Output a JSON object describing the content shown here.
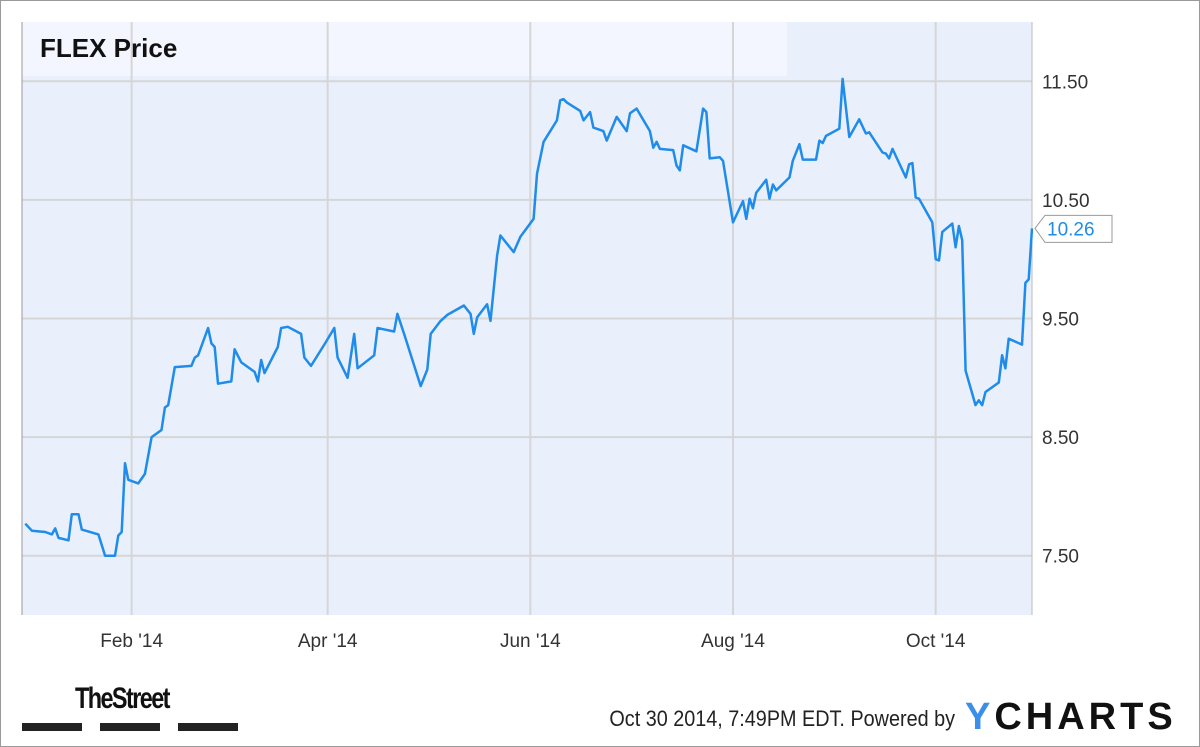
{
  "chart_data": {
    "type": "line",
    "title": "FLEX Price",
    "xlabel": "",
    "ylabel": "",
    "xlim": [
      "2013-12-30",
      "2014-10-30"
    ],
    "ylim": [
      7.0,
      12.0
    ],
    "y_ticks": [
      "7.50",
      "8.50",
      "9.50",
      "10.50",
      "11.50"
    ],
    "x_ticks": [
      {
        "date": "2014-02-01",
        "label": "Feb '14"
      },
      {
        "date": "2014-04-01",
        "label": "Apr '14"
      },
      {
        "date": "2014-06-01",
        "label": "Jun '14"
      },
      {
        "date": "2014-08-01",
        "label": "Aug '14"
      },
      {
        "date": "2014-10-01",
        "label": "Oct '14"
      }
    ],
    "grid": true,
    "y_axis_side": "right",
    "last_value_label": "10.26",
    "line_color": "#1f8ceb",
    "series": [
      {
        "x": [
          "2013-12-31",
          "2014-01-02",
          "2014-01-06",
          "2014-01-08",
          "2014-01-09",
          "2014-01-10",
          "2014-01-13",
          "2014-01-14",
          "2014-01-16",
          "2014-01-17",
          "2014-01-22",
          "2014-01-24",
          "2014-01-27",
          "2014-01-28",
          "2014-01-29",
          "2014-01-30",
          "2014-01-31",
          "2014-02-03",
          "2014-02-05",
          "2014-02-07",
          "2014-02-10",
          "2014-02-11",
          "2014-02-12",
          "2014-02-14",
          "2014-02-19",
          "2014-02-20",
          "2014-02-21",
          "2014-02-24",
          "2014-02-25",
          "2014-02-26",
          "2014-02-27",
          "2014-03-03",
          "2014-03-04",
          "2014-03-06",
          "2014-03-10",
          "2014-03-11",
          "2014-03-12",
          "2014-03-13",
          "2014-03-17",
          "2014-03-18",
          "2014-03-20",
          "2014-03-24",
          "2014-03-25",
          "2014-03-27",
          "2014-03-31",
          "2014-04-03",
          "2014-04-04",
          "2014-04-07",
          "2014-04-09",
          "2014-04-10",
          "2014-04-15",
          "2014-04-16",
          "2014-04-21",
          "2014-04-22",
          "2014-04-24",
          "2014-04-29",
          "2014-05-01",
          "2014-05-02",
          "2014-05-05",
          "2014-05-07",
          "2014-05-12",
          "2014-05-14",
          "2014-05-15",
          "2014-05-16",
          "2014-05-19",
          "2014-05-20",
          "2014-05-22",
          "2014-05-23",
          "2014-05-27",
          "2014-05-29",
          "2014-06-02",
          "2014-06-03",
          "2014-06-05",
          "2014-06-09",
          "2014-06-10",
          "2014-06-11",
          "2014-06-12",
          "2014-06-16",
          "2014-06-17",
          "2014-06-19",
          "2014-06-20",
          "2014-06-23",
          "2014-06-24",
          "2014-06-27",
          "2014-06-30",
          "2014-07-01",
          "2014-07-03",
          "2014-07-07",
          "2014-07-08",
          "2014-07-09",
          "2014-07-10",
          "2014-07-14",
          "2014-07-15",
          "2014-07-16",
          "2014-07-17",
          "2014-07-21",
          "2014-07-23",
          "2014-07-24",
          "2014-07-25",
          "2014-07-28",
          "2014-07-29",
          "2014-08-01",
          "2014-08-04",
          "2014-08-05",
          "2014-08-06",
          "2014-08-07",
          "2014-08-08",
          "2014-08-11",
          "2014-08-12",
          "2014-08-13",
          "2014-08-14",
          "2014-08-18",
          "2014-08-19",
          "2014-08-21",
          "2014-08-22",
          "2014-08-26",
          "2014-08-27",
          "2014-08-28",
          "2014-08-29",
          "2014-09-02",
          "2014-09-03",
          "2014-09-05",
          "2014-09-08",
          "2014-09-10",
          "2014-09-11",
          "2014-09-15",
          "2014-09-16",
          "2014-09-17",
          "2014-09-18",
          "2014-09-22",
          "2014-09-23",
          "2014-09-24",
          "2014-09-25",
          "2014-09-26",
          "2014-09-30",
          "2014-10-01",
          "2014-10-02",
          "2014-10-03",
          "2014-10-06",
          "2014-10-07",
          "2014-10-08",
          "2014-10-09",
          "2014-10-10",
          "2014-10-13",
          "2014-10-14",
          "2014-10-15",
          "2014-10-16",
          "2014-10-20",
          "2014-10-21",
          "2014-10-22",
          "2014-10-23",
          "2014-10-27",
          "2014-10-28",
          "2014-10-29",
          "2014-10-30"
        ],
        "y": [
          7.77,
          7.71,
          7.7,
          7.68,
          7.73,
          7.65,
          7.63,
          7.85,
          7.85,
          7.72,
          7.68,
          7.5,
          7.5,
          7.67,
          7.7,
          8.28,
          8.14,
          8.11,
          8.19,
          8.5,
          8.56,
          8.75,
          8.77,
          9.09,
          9.1,
          9.17,
          9.19,
          9.42,
          9.29,
          9.26,
          8.95,
          8.97,
          9.24,
          9.13,
          9.05,
          8.97,
          9.15,
          9.04,
          9.26,
          9.42,
          9.43,
          9.37,
          9.17,
          9.1,
          9.28,
          9.42,
          9.17,
          9.0,
          9.37,
          9.08,
          9.19,
          9.42,
          9.39,
          9.54,
          9.37,
          8.93,
          9.07,
          9.37,
          9.48,
          9.53,
          9.61,
          9.54,
          9.37,
          9.51,
          9.62,
          9.48,
          10.03,
          10.2,
          10.06,
          10.19,
          10.34,
          10.72,
          10.99,
          11.17,
          11.34,
          11.35,
          11.32,
          11.25,
          11.17,
          11.24,
          11.11,
          11.08,
          11.0,
          11.2,
          11.08,
          11.23,
          11.27,
          11.08,
          10.94,
          10.99,
          10.93,
          10.92,
          10.79,
          10.75,
          10.96,
          10.91,
          11.27,
          11.24,
          10.85,
          10.86,
          10.83,
          10.31,
          10.49,
          10.34,
          10.51,
          10.43,
          10.56,
          10.67,
          10.51,
          10.63,
          10.58,
          10.69,
          10.83,
          10.97,
          10.84,
          10.84,
          11.0,
          10.98,
          11.04,
          11.1,
          11.52,
          11.03,
          11.18,
          11.06,
          11.07,
          10.9,
          10.89,
          10.85,
          10.93,
          10.69,
          10.8,
          10.81,
          10.52,
          10.51,
          10.31,
          10.0,
          9.99,
          10.23,
          10.3,
          10.1,
          10.28,
          10.16,
          9.06,
          8.77,
          8.81,
          8.77,
          8.88,
          8.96,
          9.19,
          9.08,
          9.33,
          9.28,
          9.8,
          9.83,
          10.26
        ]
      }
    ]
  },
  "footer": {
    "publisher_logo": "TheStreet",
    "timestamp": "Oct 30 2014, 7:49PM EDT.",
    "powered_by": "Powered by",
    "brand_logo_y": "Y",
    "brand_logo_rest": "CHARTS"
  }
}
